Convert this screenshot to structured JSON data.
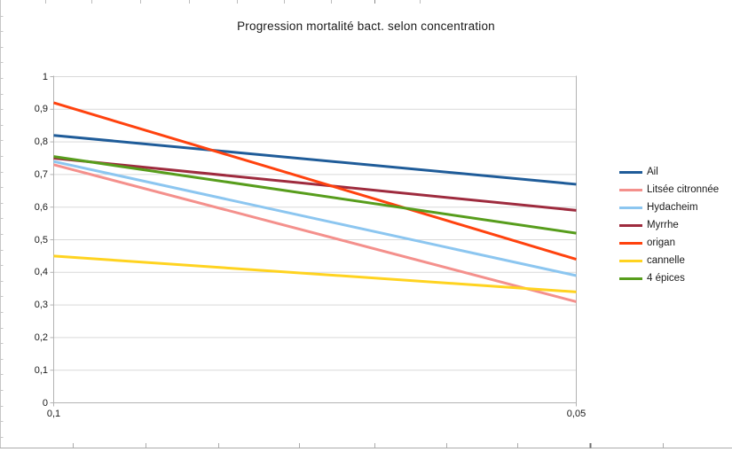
{
  "title": "Progression mortalité bact. selon concentration",
  "chart_data": {
    "type": "line",
    "title": "Progression mortalité bact. selon concentration",
    "x_categories": [
      "0,1",
      "0,05"
    ],
    "series": [
      {
        "name": "Ail",
        "color": "#1F5C99",
        "values": [
          0.82,
          0.67
        ]
      },
      {
        "name": "Litsée citronnée",
        "color": "#F4908C",
        "values": [
          0.73,
          0.31
        ]
      },
      {
        "name": "Hydacheim",
        "color": "#8CC6F0",
        "values": [
          0.74,
          0.39
        ]
      },
      {
        "name": "Myrrhe",
        "color": "#9E2B3E",
        "values": [
          0.75,
          0.59
        ]
      },
      {
        "name": "origan",
        "color": "#FF420E",
        "values": [
          0.92,
          0.44
        ]
      },
      {
        "name": "cannelle",
        "color": "#FFD320",
        "values": [
          0.45,
          0.34
        ]
      },
      {
        "name": "4 épices",
        "color": "#579D1C",
        "values": [
          0.755,
          0.52
        ]
      }
    ],
    "ylim": [
      0,
      1
    ],
    "y_tick_step": 0.1,
    "y_tick_labels": [
      "0",
      "0,1",
      "0,2",
      "0,3",
      "0,4",
      "0,5",
      "0,6",
      "0,7",
      "0,8",
      "0,9",
      "1"
    ],
    "grid": true,
    "legend_position": "right",
    "colors": {
      "gridline": "#D9D9D9",
      "axis": "#B3B3B3",
      "text": "#1a1a1a"
    }
  }
}
